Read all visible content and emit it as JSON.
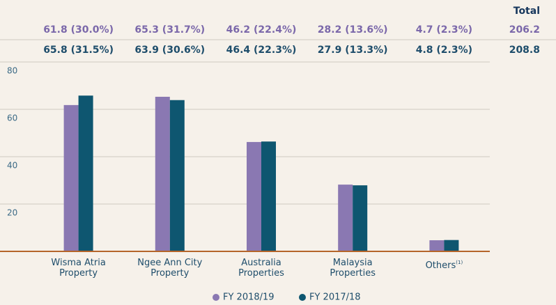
{
  "chart_data": {
    "type": "bar",
    "categories": [
      "Wisma Atria Property",
      "Ngee Ann City Property",
      "Australia Properties",
      "Malaysia Properties",
      "Others"
    ],
    "category_footnotes": [
      null,
      null,
      null,
      null,
      "(1)"
    ],
    "total_label": "Total",
    "series": [
      {
        "name": "FY 2018/19",
        "color": "#8a78b2",
        "values": [
          61.8,
          65.3,
          46.2,
          28.2,
          4.7
        ],
        "value_labels": [
          "61.8 (30.0%)",
          "65.3 (31.7%)",
          "46.2 (22.4%)",
          "28.2 (13.6%)",
          "4.7 (2.3%)"
        ],
        "total": 206.2
      },
      {
        "name": "FY 2017/18",
        "color": "#0e5670",
        "values": [
          65.8,
          63.9,
          46.4,
          27.9,
          4.8
        ],
        "value_labels": [
          "65.8 (31.5%)",
          "63.9 (30.6%)",
          "46.4 (22.3%)",
          "27.9 (13.3%)",
          "4.8 (2.3%)"
        ],
        "total": 208.8
      }
    ],
    "ylim": [
      0,
      80
    ],
    "yticks": [
      20,
      40,
      60,
      80
    ],
    "grid": true
  }
}
